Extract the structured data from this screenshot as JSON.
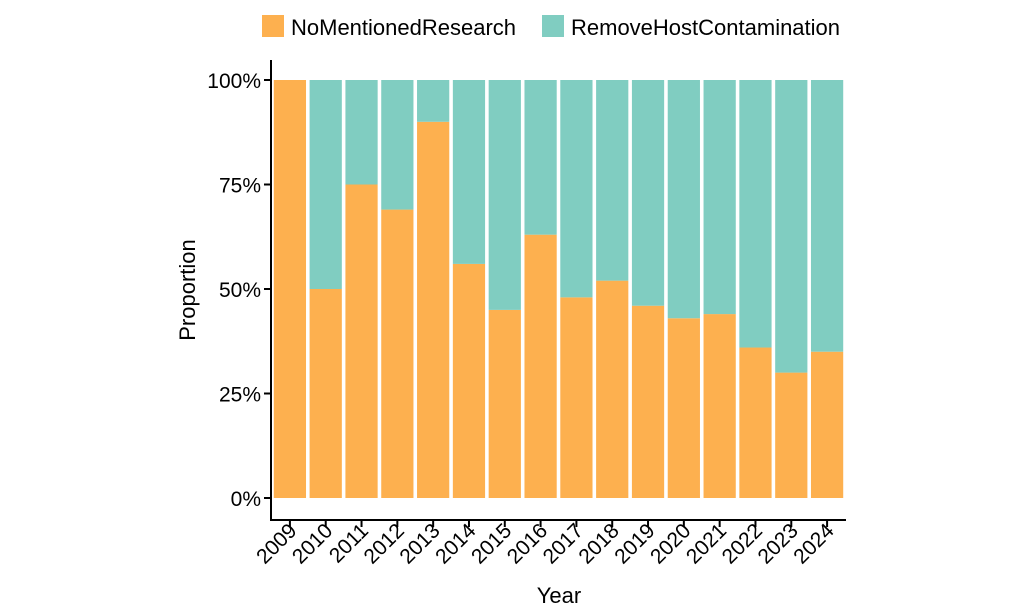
{
  "chart_data": {
    "type": "bar",
    "stacked": true,
    "categories": [
      "2009",
      "2010",
      "2011",
      "2012",
      "2013",
      "2014",
      "2015",
      "2016",
      "2017",
      "2018",
      "2019",
      "2020",
      "2021",
      "2022",
      "2023",
      "2024"
    ],
    "series": [
      {
        "name": "NoMentionedResearch",
        "color": "#FDB04F",
        "values": [
          1.0,
          0.5,
          0.75,
          0.69,
          0.9,
          0.56,
          0.45,
          0.63,
          0.48,
          0.52,
          0.46,
          0.43,
          0.44,
          0.36,
          0.3,
          0.35
        ]
      },
      {
        "name": "RemoveHostContamination",
        "color": "#80CDC1",
        "values": [
          0.0,
          0.5,
          0.25,
          0.31,
          0.1,
          0.44,
          0.55,
          0.37,
          0.52,
          0.48,
          0.54,
          0.57,
          0.56,
          0.64,
          0.7,
          0.65
        ]
      }
    ],
    "xlabel": "Year",
    "ylabel": "Proportion",
    "ylim": [
      0,
      1
    ],
    "yticks": [
      0,
      0.25,
      0.5,
      0.75,
      1.0
    ],
    "ytick_labels": [
      "0%",
      "25%",
      "50%",
      "75%",
      "100%"
    ],
    "legend_position": "top",
    "grid": false
  }
}
